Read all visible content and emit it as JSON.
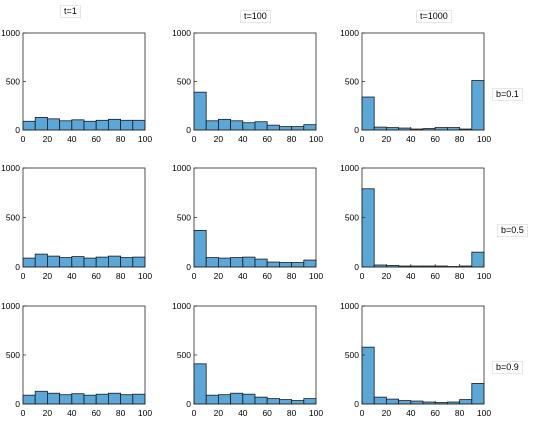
{
  "colors": {
    "bar_fill": "#5aa7d8",
    "bar_stroke": "#1a1a1a",
    "axes": "#262626",
    "background": "#ffffff"
  },
  "column_titles": [
    "t=1",
    "t=100",
    "t=1000"
  ],
  "row_labels": [
    "b=0.1",
    "b=0.5",
    "b=0.9"
  ],
  "chart_data": [
    {
      "type": "bar",
      "row": 0,
      "col": 0,
      "title": "t=1",
      "xlim": [
        0,
        100
      ],
      "ylim": [
        0,
        1000
      ],
      "xticks": [
        0,
        20,
        40,
        60,
        80,
        100
      ],
      "yticks": [
        0,
        500,
        1000
      ],
      "bin_edges": [
        0,
        10,
        20,
        30,
        40,
        50,
        60,
        70,
        80,
        90,
        100
      ],
      "values": [
        90,
        130,
        115,
        95,
        105,
        90,
        100,
        110,
        100,
        100
      ]
    },
    {
      "type": "bar",
      "row": 0,
      "col": 1,
      "title": "t=100",
      "xlim": [
        0,
        100
      ],
      "ylim": [
        0,
        1000
      ],
      "xticks": [
        0,
        20,
        40,
        60,
        80,
        100
      ],
      "yticks": [
        0,
        500,
        1000
      ],
      "bin_edges": [
        0,
        10,
        20,
        30,
        40,
        50,
        60,
        70,
        80,
        90,
        100
      ],
      "values": [
        390,
        95,
        110,
        95,
        75,
        85,
        50,
        35,
        35,
        55
      ]
    },
    {
      "type": "bar",
      "row": 0,
      "col": 2,
      "title": "t=1000",
      "label": "b=0.1",
      "xlim": [
        0,
        100
      ],
      "ylim": [
        0,
        1000
      ],
      "xticks": [
        0,
        20,
        40,
        60,
        80,
        100
      ],
      "yticks": [
        0,
        500,
        1000
      ],
      "bin_edges": [
        0,
        10,
        20,
        30,
        40,
        50,
        60,
        70,
        80,
        90,
        100
      ],
      "values": [
        340,
        30,
        25,
        20,
        10,
        15,
        25,
        25,
        10,
        510
      ]
    },
    {
      "type": "bar",
      "row": 1,
      "col": 0,
      "xlim": [
        0,
        100
      ],
      "ylim": [
        0,
        1000
      ],
      "xticks": [
        0,
        20,
        40,
        60,
        80,
        100
      ],
      "yticks": [
        0,
        500,
        1000
      ],
      "bin_edges": [
        0,
        10,
        20,
        30,
        40,
        50,
        60,
        70,
        80,
        90,
        100
      ],
      "values": [
        90,
        130,
        110,
        95,
        105,
        90,
        100,
        110,
        95,
        100
      ]
    },
    {
      "type": "bar",
      "row": 1,
      "col": 1,
      "xlim": [
        0,
        100
      ],
      "ylim": [
        0,
        1000
      ],
      "xticks": [
        0,
        20,
        40,
        60,
        80,
        100
      ],
      "yticks": [
        0,
        500,
        1000
      ],
      "bin_edges": [
        0,
        10,
        20,
        30,
        40,
        50,
        60,
        70,
        80,
        90,
        100
      ],
      "values": [
        370,
        95,
        90,
        95,
        100,
        80,
        50,
        45,
        45,
        70
      ]
    },
    {
      "type": "bar",
      "row": 1,
      "col": 2,
      "label": "b=0.5",
      "xlim": [
        0,
        100
      ],
      "ylim": [
        0,
        1000
      ],
      "xticks": [
        0,
        20,
        40,
        60,
        80,
        100
      ],
      "yticks": [
        0,
        500,
        1000
      ],
      "bin_edges": [
        0,
        10,
        20,
        30,
        40,
        50,
        60,
        70,
        80,
        90,
        100
      ],
      "values": [
        790,
        20,
        15,
        10,
        10,
        10,
        10,
        5,
        10,
        150
      ]
    },
    {
      "type": "bar",
      "row": 2,
      "col": 0,
      "xlim": [
        0,
        100
      ],
      "ylim": [
        0,
        1000
      ],
      "xticks": [
        0,
        20,
        40,
        60,
        80,
        100
      ],
      "yticks": [
        0,
        500,
        1000
      ],
      "bin_edges": [
        0,
        10,
        20,
        30,
        40,
        50,
        60,
        70,
        80,
        90,
        100
      ],
      "values": [
        90,
        130,
        110,
        95,
        105,
        90,
        100,
        110,
        95,
        100
      ]
    },
    {
      "type": "bar",
      "row": 2,
      "col": 1,
      "xlim": [
        0,
        100
      ],
      "ylim": [
        0,
        1000
      ],
      "xticks": [
        0,
        20,
        40,
        60,
        80,
        100
      ],
      "yticks": [
        0,
        500,
        1000
      ],
      "bin_edges": [
        0,
        10,
        20,
        30,
        40,
        50,
        60,
        70,
        80,
        90,
        100
      ],
      "values": [
        410,
        90,
        95,
        110,
        100,
        70,
        55,
        45,
        35,
        55
      ]
    },
    {
      "type": "bar",
      "row": 2,
      "col": 2,
      "label": "b=0.9",
      "xlim": [
        0,
        100
      ],
      "ylim": [
        0,
        1000
      ],
      "xticks": [
        0,
        20,
        40,
        60,
        80,
        100
      ],
      "yticks": [
        0,
        500,
        1000
      ],
      "bin_edges": [
        0,
        10,
        20,
        30,
        40,
        50,
        60,
        70,
        80,
        90,
        100
      ],
      "values": [
        580,
        70,
        50,
        35,
        30,
        20,
        15,
        20,
        45,
        210
      ]
    }
  ]
}
